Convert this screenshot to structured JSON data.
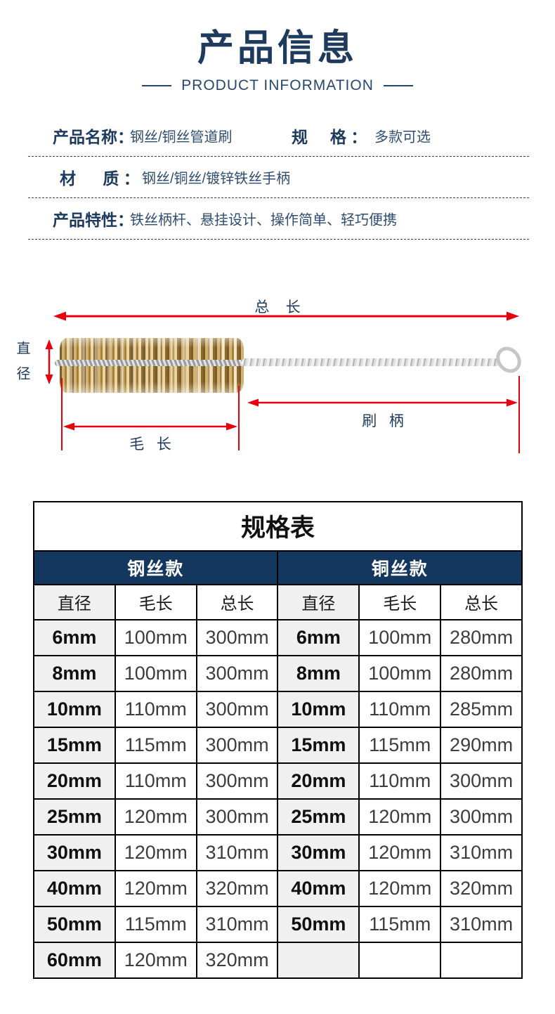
{
  "colors": {
    "accent_navy": "#1e3a5c",
    "table_band_navy": "#14375f",
    "arrow_red": "#e8000d",
    "shade_gray": "#f0f0f0"
  },
  "header": {
    "title": "产品信息",
    "subtitle": "PRODUCT INFORMATION"
  },
  "attributes": {
    "row1": {
      "label1": "产品名称：",
      "value1": "钢丝/铜丝管道刷",
      "label2": "规     格 ：",
      "value2": "多款可选"
    },
    "row2": {
      "label": "材      质 ：",
      "value": "钢丝/铜丝/镀锌铁丝手柄"
    },
    "row3": {
      "label": "产品特性：",
      "value": "铁丝柄杆、悬挂设计、操作简单、轻巧便携"
    }
  },
  "diagram": {
    "total_length_label": "总    长",
    "diameter_label": "直径",
    "bristle_length_label": "毛   长",
    "handle_label": "刷   柄"
  },
  "spec_table": {
    "title": "规格表",
    "group_headers": [
      "钢丝款",
      "铜丝款"
    ],
    "column_headers": [
      "直径",
      "毛长",
      "总长",
      "直径",
      "毛长",
      "总长"
    ],
    "rows": [
      [
        "6mm",
        "100mm",
        "300mm",
        "6mm",
        "100mm",
        "280mm"
      ],
      [
        "8mm",
        "100mm",
        "300mm",
        "8mm",
        "100mm",
        "280mm"
      ],
      [
        "10mm",
        "110mm",
        "300mm",
        "10mm",
        "110mm",
        "285mm"
      ],
      [
        "15mm",
        "115mm",
        "300mm",
        "15mm",
        "115mm",
        "290mm"
      ],
      [
        "20mm",
        "110mm",
        "300mm",
        "20mm",
        "110mm",
        "300mm"
      ],
      [
        "25mm",
        "120mm",
        "300mm",
        "25mm",
        "120mm",
        "300mm"
      ],
      [
        "30mm",
        "120mm",
        "310mm",
        "30mm",
        "120mm",
        "310mm"
      ],
      [
        "40mm",
        "120mm",
        "320mm",
        "40mm",
        "120mm",
        "320mm"
      ],
      [
        "50mm",
        "115mm",
        "310mm",
        "50mm",
        "115mm",
        "310mm"
      ],
      [
        "60mm",
        "120mm",
        "320mm",
        "",
        "",
        ""
      ]
    ]
  }
}
